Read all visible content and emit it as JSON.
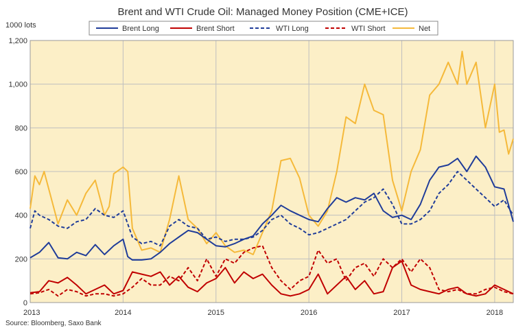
{
  "chart_data": {
    "type": "line",
    "title": "Brent and WTI Crude Oil: Managed Money Position (CME+ICE)",
    "unit_label": "1000 lots",
    "source": "Source: Bloomberg, Saxo Bank",
    "y_ticks": [
      "0",
      "200",
      "400",
      "600",
      "800",
      "1,000",
      "1,200"
    ],
    "x_ticks": [
      "2013",
      "2014",
      "2015",
      "2016",
      "2017",
      "2018"
    ],
    "xlim": [
      2013.0,
      2018.2
    ],
    "ylim": [
      0,
      1200
    ],
    "grid": true,
    "legend_position": "top",
    "colors": {
      "background": "#FCEFC7",
      "grid": "#BFBFBF",
      "brent_long": "#1F3C99",
      "brent_short": "#C00000",
      "net": "#F5B93A"
    },
    "series": [
      {
        "name": "Brent Long",
        "key": "brent_long",
        "color": "#1F3C99",
        "dash": "solid",
        "x": [
          2013.0,
          2013.1,
          2013.2,
          2013.3,
          2013.4,
          2013.5,
          2013.6,
          2013.7,
          2013.8,
          2013.9,
          2014.0,
          2014.05,
          2014.1,
          2014.2,
          2014.3,
          2014.4,
          2014.5,
          2014.6,
          2014.7,
          2014.8,
          2014.9,
          2015.0,
          2015.1,
          2015.2,
          2015.3,
          2015.4,
          2015.5,
          2015.6,
          2015.7,
          2015.8,
          2015.9,
          2016.0,
          2016.1,
          2016.2,
          2016.3,
          2016.4,
          2016.5,
          2016.6,
          2016.7,
          2016.8,
          2016.9,
          2017.0,
          2017.1,
          2017.2,
          2017.3,
          2017.4,
          2017.5,
          2017.6,
          2017.7,
          2017.8,
          2017.9,
          2018.0,
          2018.1,
          2018.2
        ],
        "values": [
          205,
          230,
          275,
          205,
          200,
          230,
          215,
          265,
          220,
          260,
          290,
          210,
          195,
          195,
          200,
          230,
          270,
          300,
          330,
          320,
          290,
          260,
          255,
          270,
          290,
          305,
          360,
          400,
          445,
          420,
          400,
          380,
          370,
          430,
          480,
          460,
          480,
          470,
          500,
          420,
          390,
          400,
          380,
          450,
          560,
          620,
          630,
          660,
          600,
          670,
          620,
          530,
          520,
          370
        ]
      },
      {
        "name": "Brent Short",
        "key": "brent_short",
        "color": "#C00000",
        "dash": "solid",
        "x": [
          2013.0,
          2013.1,
          2013.2,
          2013.3,
          2013.4,
          2013.5,
          2013.6,
          2013.7,
          2013.8,
          2013.9,
          2014.0,
          2014.1,
          2014.2,
          2014.3,
          2014.4,
          2014.5,
          2014.6,
          2014.7,
          2014.8,
          2014.9,
          2015.0,
          2015.1,
          2015.2,
          2015.3,
          2015.4,
          2015.5,
          2015.6,
          2015.7,
          2015.8,
          2015.9,
          2016.0,
          2016.1,
          2016.2,
          2016.3,
          2016.4,
          2016.5,
          2016.6,
          2016.7,
          2016.8,
          2016.9,
          2017.0,
          2017.1,
          2017.2,
          2017.3,
          2017.4,
          2017.5,
          2017.6,
          2017.7,
          2017.8,
          2017.9,
          2018.0,
          2018.1,
          2018.2
        ],
        "values": [
          45,
          50,
          100,
          90,
          115,
          80,
          40,
          60,
          80,
          40,
          55,
          140,
          130,
          120,
          140,
          80,
          120,
          70,
          50,
          90,
          110,
          160,
          90,
          140,
          110,
          130,
          80,
          40,
          30,
          40,
          60,
          130,
          40,
          80,
          120,
          60,
          100,
          40,
          50,
          160,
          190,
          80,
          60,
          50,
          40,
          60,
          70,
          40,
          30,
          40,
          80,
          60,
          40
        ]
      },
      {
        "name": "WTI Long",
        "key": "wti_long",
        "color": "#1F3C99",
        "dash": "dashed",
        "x": [
          2013.0,
          2013.05,
          2013.1,
          2013.2,
          2013.3,
          2013.4,
          2013.5,
          2013.6,
          2013.7,
          2013.8,
          2013.9,
          2014.0,
          2014.1,
          2014.2,
          2014.3,
          2014.4,
          2014.5,
          2014.6,
          2014.7,
          2014.8,
          2014.9,
          2015.0,
          2015.1,
          2015.2,
          2015.3,
          2015.4,
          2015.5,
          2015.6,
          2015.7,
          2015.8,
          2015.9,
          2016.0,
          2016.1,
          2016.2,
          2016.3,
          2016.4,
          2016.5,
          2016.6,
          2016.7,
          2016.8,
          2016.9,
          2017.0,
          2017.1,
          2017.2,
          2017.3,
          2017.4,
          2017.5,
          2017.6,
          2017.7,
          2017.8,
          2017.9,
          2018.0,
          2018.1,
          2018.2
        ],
        "values": [
          340,
          420,
          400,
          380,
          350,
          340,
          370,
          380,
          430,
          400,
          390,
          420,
          300,
          270,
          280,
          260,
          350,
          380,
          350,
          340,
          290,
          300,
          280,
          290,
          290,
          300,
          330,
          380,
          400,
          360,
          340,
          310,
          320,
          340,
          360,
          380,
          420,
          460,
          480,
          520,
          450,
          360,
          360,
          380,
          420,
          500,
          540,
          600,
          560,
          520,
          480,
          440,
          470,
          400
        ]
      },
      {
        "name": "WTI Short",
        "key": "wti_short",
        "color": "#C00000",
        "dash": "dashed",
        "x": [
          2013.0,
          2013.1,
          2013.2,
          2013.3,
          2013.4,
          2013.5,
          2013.6,
          2013.7,
          2013.8,
          2013.9,
          2014.0,
          2014.1,
          2014.2,
          2014.3,
          2014.4,
          2014.5,
          2014.6,
          2014.7,
          2014.8,
          2014.9,
          2015.0,
          2015.1,
          2015.2,
          2015.3,
          2015.4,
          2015.5,
          2015.6,
          2015.7,
          2015.8,
          2015.9,
          2016.0,
          2016.1,
          2016.2,
          2016.3,
          2016.4,
          2016.5,
          2016.6,
          2016.7,
          2016.8,
          2016.9,
          2017.0,
          2017.1,
          2017.2,
          2017.3,
          2017.4,
          2017.5,
          2017.6,
          2017.7,
          2017.8,
          2017.9,
          2018.0,
          2018.1,
          2018.2
        ],
        "values": [
          40,
          45,
          60,
          30,
          60,
          50,
          30,
          40,
          40,
          30,
          40,
          70,
          110,
          80,
          80,
          120,
          100,
          160,
          100,
          200,
          120,
          200,
          180,
          230,
          250,
          260,
          160,
          100,
          60,
          100,
          120,
          240,
          180,
          200,
          100,
          160,
          180,
          120,
          200,
          160,
          200,
          140,
          200,
          160,
          60,
          50,
          60,
          40,
          40,
          60,
          70,
          50,
          40
        ]
      },
      {
        "name": "Net",
        "key": "net",
        "color": "#F5B93A",
        "dash": "solid",
        "x": [
          2013.0,
          2013.05,
          2013.1,
          2013.15,
          2013.2,
          2013.3,
          2013.4,
          2013.5,
          2013.6,
          2013.7,
          2013.8,
          2013.85,
          2013.9,
          2014.0,
          2014.05,
          2014.1,
          2014.2,
          2014.3,
          2014.4,
          2014.5,
          2014.6,
          2014.7,
          2014.8,
          2014.9,
          2015.0,
          2015.1,
          2015.2,
          2015.3,
          2015.4,
          2015.5,
          2015.6,
          2015.7,
          2015.8,
          2015.9,
          2016.0,
          2016.1,
          2016.2,
          2016.3,
          2016.4,
          2016.5,
          2016.6,
          2016.7,
          2016.8,
          2016.9,
          2017.0,
          2017.1,
          2017.2,
          2017.3,
          2017.4,
          2017.5,
          2017.6,
          2017.65,
          2017.7,
          2017.8,
          2017.9,
          2018.0,
          2018.05,
          2018.1,
          2018.15,
          2018.2
        ],
        "values": [
          430,
          580,
          540,
          600,
          520,
          360,
          470,
          400,
          500,
          560,
          400,
          440,
          590,
          620,
          600,
          340,
          240,
          250,
          230,
          380,
          580,
          380,
          340,
          270,
          320,
          260,
          230,
          240,
          220,
          320,
          420,
          650,
          660,
          570,
          400,
          350,
          420,
          600,
          850,
          820,
          1000,
          880,
          860,
          560,
          420,
          600,
          700,
          950,
          1000,
          1100,
          1000,
          1150,
          1000,
          1100,
          800,
          1000,
          780,
          790,
          680,
          750
        ]
      }
    ]
  }
}
